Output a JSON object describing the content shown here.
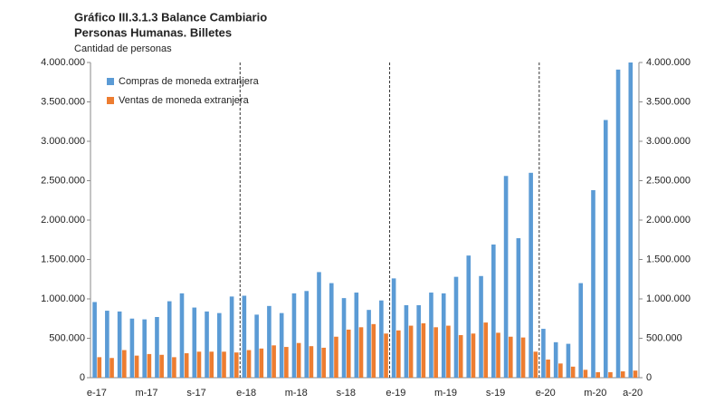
{
  "chart_data": {
    "type": "bar",
    "title": "Gráfico III.3.1.3 Balance Cambiario",
    "subtitle": "Personas Humanas. Billetes",
    "y_label": "Cantidad de personas",
    "categories": [
      "e-17",
      null,
      null,
      null,
      "m-17",
      null,
      null,
      null,
      "s-17",
      null,
      null,
      null,
      "e-18",
      null,
      null,
      null,
      "m-18",
      null,
      null,
      null,
      "s-18",
      null,
      null,
      null,
      "e-19",
      null,
      null,
      null,
      "m-19",
      null,
      null,
      null,
      "s-19",
      null,
      null,
      null,
      "e-20",
      null,
      null,
      null,
      "m-20",
      null,
      null,
      "a-20"
    ],
    "series": [
      {
        "name": "Compras de moneda extranjera",
        "color": "#5b9bd5",
        "values": [
          960000,
          850000,
          840000,
          750000,
          740000,
          770000,
          970000,
          1070000,
          890000,
          840000,
          820000,
          1030000,
          1040000,
          800000,
          910000,
          820000,
          1070000,
          1100000,
          1340000,
          1200000,
          1010000,
          1080000,
          860000,
          980000,
          1260000,
          920000,
          920000,
          1080000,
          1070000,
          1280000,
          1550000,
          1290000,
          1690000,
          2560000,
          1770000,
          2600000,
          620000,
          450000,
          430000,
          1200000,
          2380000,
          3270000,
          3910000,
          4000000
        ]
      },
      {
        "name": "Ventas de moneda extranjera",
        "color": "#ed7d31",
        "values": [
          260000,
          250000,
          350000,
          280000,
          300000,
          290000,
          260000,
          310000,
          330000,
          330000,
          330000,
          320000,
          350000,
          370000,
          410000,
          390000,
          440000,
          400000,
          380000,
          520000,
          610000,
          640000,
          680000,
          560000,
          600000,
          660000,
          690000,
          640000,
          660000,
          540000,
          560000,
          700000,
          570000,
          520000,
          510000,
          330000,
          230000,
          180000,
          140000,
          100000,
          70000,
          70000,
          80000,
          90000
        ]
      }
    ],
    "ylim": [
      0,
      4000000
    ],
    "yticks": [
      0,
      {
        "value": 500000,
        "label": "500.000"
      },
      {
        "value": 1000000,
        "label": "1.000.000"
      },
      {
        "value": 1500000,
        "label": "1.500.000"
      },
      {
        "value": 2000000,
        "label": "2.000.000"
      },
      {
        "value": 2500000,
        "label": "2.500.000"
      },
      {
        "value": 3000000,
        "label": "3.000.000"
      },
      {
        "value": 3500000,
        "label": "3.500.000"
      },
      {
        "value": 4000000,
        "label": "4.000.000"
      }
    ],
    "y2lim": [
      0,
      4000000
    ],
    "y2ticks": [
      0,
      {
        "value": 500000,
        "label": "500.000"
      },
      {
        "value": 1000000,
        "label": "1.000.000"
      },
      {
        "value": 1500000,
        "label": "1.500.000"
      },
      {
        "value": 2000000,
        "label": "2.000.000"
      },
      {
        "value": 2500000,
        "label": "2.500.000"
      },
      {
        "value": 3000000,
        "label": "3.000.000"
      },
      {
        "value": 3500000,
        "label": "3.500.000"
      },
      {
        "value": 4000000,
        "label": "4.000.000"
      }
    ],
    "legend": "upper left"
  }
}
